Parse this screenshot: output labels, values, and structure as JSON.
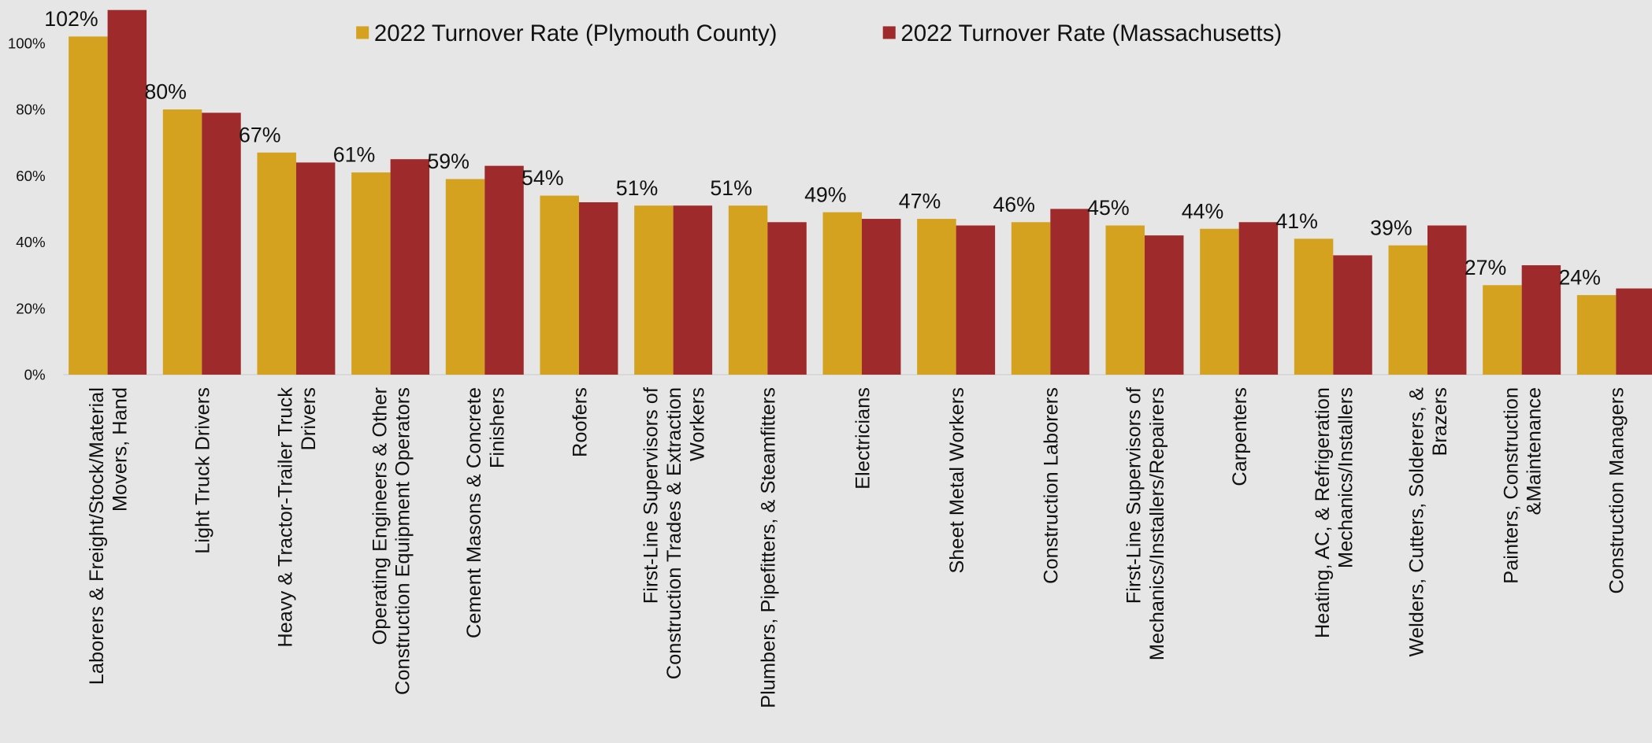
{
  "chart_data": {
    "type": "bar",
    "categories": [
      "Laborers & Freight/Stock/Material\nMovers, Hand",
      "Light Truck Drivers",
      "Heavy & Tractor-Trailer Truck\nDrivers",
      "Operating Engineers & Other\nConstruction Equipment Operators",
      "Cement Masons & Concrete\nFinishers",
      "Roofers",
      "First-Line Supervisors of\nConstruction Trades & Extraction\nWorkers",
      "Plumbers, Pipefitters, & Steamfitters",
      "Electricians",
      "Sheet Metal Workers",
      "Construction Laborers",
      "First-Line Supervisors of\nMechanics/Installers/Repairers",
      "Carpenters",
      "Heating, AC, & Refrigeration\nMechanics/Installers",
      "Welders, Cutters, Solderers, &\nBrazers",
      "Painters, Construction\n&Maintenance",
      "Construction Managers"
    ],
    "series": [
      {
        "name": "2022 Turnover Rate (Plymouth County)",
        "color": "#d4a21e",
        "values": [
          102,
          80,
          67,
          61,
          59,
          54,
          51,
          51,
          49,
          47,
          46,
          45,
          44,
          41,
          39,
          27,
          24
        ],
        "value_labels": [
          "102%",
          "80%",
          "67%",
          "61%",
          "59%",
          "54%",
          "51%",
          "51%",
          "49%",
          "47%",
          "46%",
          "45%",
          "44%",
          "41%",
          "39%",
          "27%",
          "24%"
        ]
      },
      {
        "name": "2022 Turnover Rate (Massachusetts)",
        "color": "#9e2a2b",
        "values": [
          110,
          79,
          64,
          65,
          63,
          52,
          51,
          46,
          47,
          45,
          50,
          42,
          46,
          36,
          45,
          33,
          26
        ]
      }
    ],
    "ylim": [
      0,
      110
    ],
    "yticks": [
      {
        "value": 0,
        "label": "0%"
      },
      {
        "value": 20,
        "label": "20%"
      },
      {
        "value": 40,
        "label": "40%"
      },
      {
        "value": 60,
        "label": "60%"
      },
      {
        "value": 80,
        "label": "80%"
      },
      {
        "value": 100,
        "label": "100%"
      }
    ],
    "legend": "top",
    "grid": false
  }
}
